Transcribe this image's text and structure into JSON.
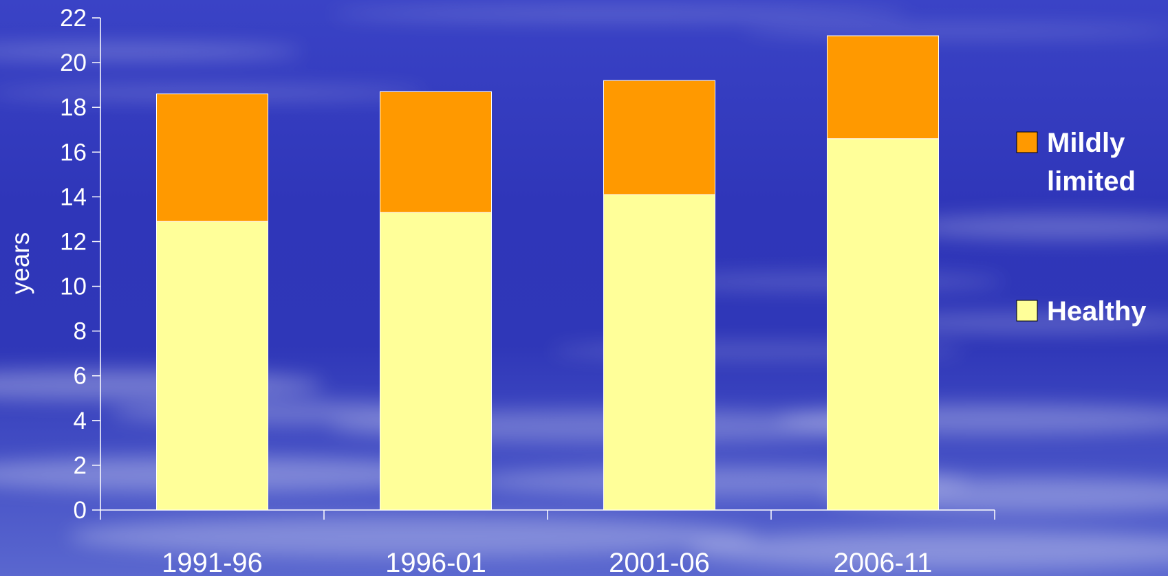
{
  "chart_data": {
    "type": "bar",
    "stacked": true,
    "categories": [
      "1991-96",
      "1996-01",
      "2001-06",
      "2006-11"
    ],
    "series": [
      {
        "name": "Healthy",
        "values": [
          12.9,
          13.3,
          14.1,
          16.6
        ],
        "color": "#ffff99"
      },
      {
        "name": "Mildly limited",
        "values": [
          5.7,
          5.4,
          5.1,
          4.6
        ],
        "color": "#ff9900"
      }
    ],
    "ylabel": "years",
    "ylim": [
      0,
      22
    ],
    "yticks": [
      0,
      2,
      4,
      6,
      8,
      10,
      12,
      14,
      16,
      18,
      20,
      22
    ],
    "grid": false,
    "legend": {
      "position": "right",
      "entries": [
        {
          "lines": [
            "Mildly",
            "limited"
          ],
          "color": "#ff9900"
        },
        {
          "lines": [
            "Healthy"
          ],
          "color": "#ffff99"
        }
      ]
    },
    "colors": {
      "axis": "#ffffff",
      "bar_outline": "#ffffff",
      "background": "#2f36b9"
    }
  }
}
